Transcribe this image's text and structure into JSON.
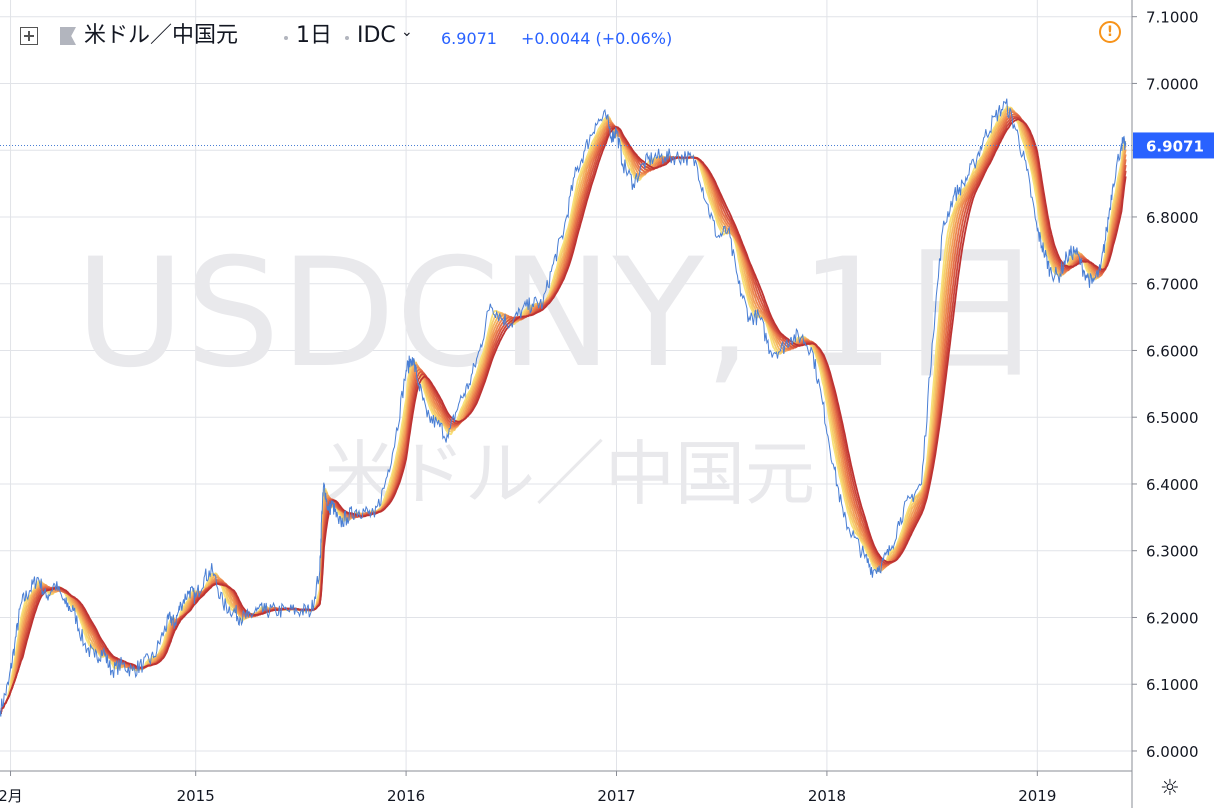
{
  "header": {
    "symbol_name": "米ドル／中国元",
    "interval": "1日",
    "exchange": "IDC",
    "last_price": "6.9071",
    "change": "+0.0044 (+0.06%)"
  },
  "watermark": {
    "line1": "USDCNY, 1日",
    "line2": "米ドル／中国元"
  },
  "icons": {
    "expand": "expand-icon",
    "flag": "flag-icon",
    "dropdown": "chevron-down-icon",
    "warning": "warning-icon",
    "settings": "gear-icon"
  },
  "chart_data": {
    "type": "line",
    "y_ticks": [
      "6.0000",
      "6.1000",
      "6.2000",
      "6.3000",
      "6.4000",
      "6.5000",
      "6.6000",
      "6.7000",
      "6.8000",
      "6.9000",
      "7.0000",
      "7.1000"
    ],
    "ylim": [
      5.97,
      7.125
    ],
    "x_ticks": [
      {
        "label": "2月",
        "t": 2014.12
      },
      {
        "label": "2015",
        "t": 2015.0
      },
      {
        "label": "2016",
        "t": 2016.0
      },
      {
        "label": "2017",
        "t": 2017.0
      },
      {
        "label": "2018",
        "t": 2018.0
      },
      {
        "label": "2019",
        "t": 2019.0
      }
    ],
    "xlim": [
      2014.07,
      2019.45
    ],
    "last_value_label": "6.9071",
    "last_value": 6.9071,
    "colors": {
      "price": "#2962ff",
      "price_line": "#4a7fd4",
      "ribbon": [
        "#f8e27a",
        "#f6cd6c",
        "#f4b662",
        "#f19f58",
        "#ec8750",
        "#e47049",
        "#d95a42",
        "#cc453a",
        "#bd3332"
      ],
      "grid": "#e1e3e8",
      "axis_text": "#131722"
    },
    "series": [
      {
        "key": "price",
        "x": [
          2014.07,
          2014.11,
          2014.14,
          2014.17,
          2014.21,
          2014.25,
          2014.29,
          2014.33,
          2014.38,
          2014.42,
          2014.47,
          2014.52,
          2014.56,
          2014.6,
          2014.65,
          2014.7,
          2014.75,
          2014.8,
          2014.85,
          2014.88,
          2014.9,
          2014.93,
          2014.97,
          2015.0,
          2015.04,
          2015.08,
          2015.13,
          2015.18,
          2015.21,
          2015.25,
          2015.29,
          2015.33,
          2015.38,
          2015.44,
          2015.5,
          2015.55,
          2015.59,
          2015.6,
          2015.61,
          2015.63,
          2015.65,
          2015.68,
          2015.72,
          2015.76,
          2015.8,
          2015.85,
          2015.9,
          2015.95,
          2016.0,
          2016.03,
          2016.06,
          2016.1,
          2016.15,
          2016.2,
          2016.25,
          2016.3,
          2016.35,
          2016.4,
          2016.45,
          2016.5,
          2016.55,
          2016.6,
          2016.65,
          2016.7,
          2016.75,
          2016.8,
          2016.85,
          2016.9,
          2016.95,
          2016.98,
          2017.0,
          2017.03,
          2017.08,
          2017.13,
          2017.18,
          2017.23,
          2017.28,
          2017.33,
          2017.38,
          2017.43,
          2017.48,
          2017.53,
          2017.58,
          2017.63,
          2017.68,
          2017.73,
          2017.78,
          2017.83,
          2017.88,
          2017.93,
          2017.98,
          2018.03,
          2018.08,
          2018.13,
          2018.18,
          2018.22,
          2018.26,
          2018.3,
          2018.35,
          2018.4,
          2018.45,
          2018.5,
          2018.55,
          2018.6,
          2018.65,
          2018.7,
          2018.75,
          2018.8,
          2018.85,
          2018.9,
          2018.95,
          2019.0,
          2019.03,
          2019.06,
          2019.1,
          2019.14,
          2019.18,
          2019.22,
          2019.26,
          2019.3,
          2019.33,
          2019.36,
          2019.4,
          2019.42
        ],
        "values": [
          6.06,
          6.1,
          6.16,
          6.22,
          6.24,
          6.26,
          6.23,
          6.25,
          6.22,
          6.21,
          6.16,
          6.14,
          6.15,
          6.12,
          6.13,
          6.12,
          6.13,
          6.14,
          6.18,
          6.2,
          6.19,
          6.22,
          6.24,
          6.23,
          6.26,
          6.27,
          6.22,
          6.21,
          6.2,
          6.2,
          6.21,
          6.21,
          6.21,
          6.21,
          6.21,
          6.21,
          6.27,
          6.36,
          6.4,
          6.36,
          6.37,
          6.34,
          6.35,
          6.36,
          6.36,
          6.35,
          6.4,
          6.47,
          6.57,
          6.59,
          6.55,
          6.5,
          6.49,
          6.47,
          6.52,
          6.55,
          6.6,
          6.67,
          6.65,
          6.64,
          6.66,
          6.67,
          6.67,
          6.73,
          6.78,
          6.86,
          6.9,
          6.94,
          6.95,
          6.92,
          6.93,
          6.88,
          6.85,
          6.88,
          6.89,
          6.89,
          6.89,
          6.89,
          6.88,
          6.82,
          6.77,
          6.78,
          6.7,
          6.65,
          6.65,
          6.6,
          6.6,
          6.62,
          6.62,
          6.6,
          6.52,
          6.43,
          6.35,
          6.32,
          6.29,
          6.27,
          6.28,
          6.3,
          6.35,
          6.38,
          6.4,
          6.61,
          6.78,
          6.83,
          6.85,
          6.88,
          6.92,
          6.95,
          6.97,
          6.93,
          6.87,
          6.78,
          6.75,
          6.72,
          6.71,
          6.74,
          6.75,
          6.72,
          6.7,
          6.72,
          6.78,
          6.85,
          6.91,
          6.9071
        ]
      }
    ]
  }
}
